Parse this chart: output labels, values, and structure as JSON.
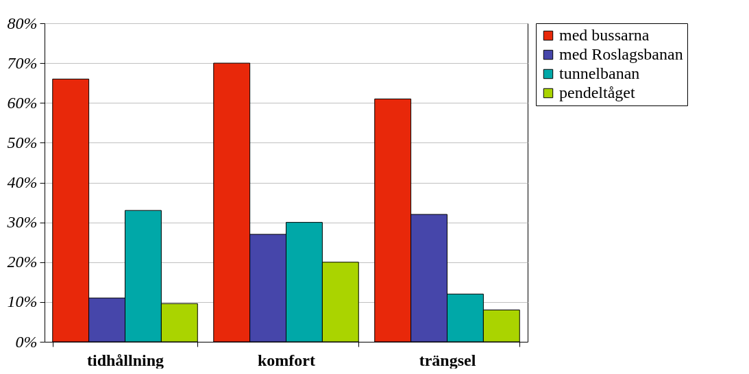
{
  "chart_data": {
    "type": "bar",
    "categories": [
      "tidhållning",
      "komfort",
      "trängsel"
    ],
    "series": [
      {
        "name": "med bussarna",
        "color": "#e8280a",
        "values": [
          66,
          70,
          61
        ]
      },
      {
        "name": "med Roslagsbanan",
        "color": "#4646aa",
        "values": [
          11,
          27,
          32
        ]
      },
      {
        "name": "tunnelbanan",
        "color": "#00a8a8",
        "values": [
          33,
          30,
          12
        ]
      },
      {
        "name": "pendeltåget",
        "color": "#aad400",
        "values": [
          9.6,
          20,
          8
        ]
      }
    ],
    "ylim": [
      0,
      80
    ],
    "yticks": [
      {
        "value": 0,
        "label": "0%"
      },
      {
        "value": 10,
        "label": "10%"
      },
      {
        "value": 20,
        "label": "20%"
      },
      {
        "value": 30,
        "label": "30%"
      },
      {
        "value": 40,
        "label": "40%"
      },
      {
        "value": 50,
        "label": "50%"
      },
      {
        "value": 60,
        "label": "60%"
      },
      {
        "value": 70,
        "label": "70%"
      },
      {
        "value": 80,
        "label": "80%"
      }
    ],
    "grid": "y",
    "legend": "right"
  }
}
